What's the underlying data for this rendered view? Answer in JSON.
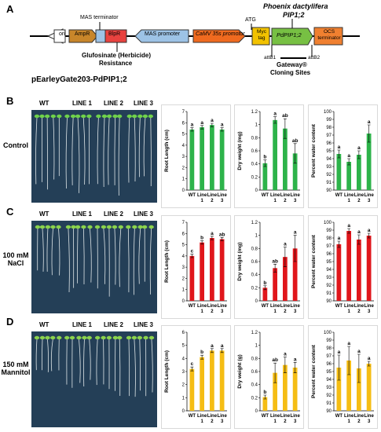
{
  "panels": {
    "A": "A",
    "B": "B",
    "C": "C",
    "D": "D"
  },
  "construct": {
    "title": "Phoenix dactylifera",
    "title2": "PIP1;2",
    "plasmid_name": "pEarleyGate203-PdPIP1;2",
    "ori": "ori",
    "ampr": "AmpR",
    "blpr": "BlpR",
    "mas_promoter": "MAS promoter",
    "camv": "CaMV 35s promotor",
    "myc": "Myc tag",
    "gene": "PdPIP1;2",
    "ocs": "OCS terminator",
    "mas_terminator": "MAS terminator",
    "atg": "ATG",
    "glufo1": "Glufosinate (Herbicide)",
    "glufo2": "Resistance",
    "attb1": "attB1",
    "attb2": "attB2",
    "gateway1": "Gateway®",
    "gateway2": "Cloning Sites"
  },
  "plate_headers": [
    "WT",
    "LINE 1",
    "LINE 2",
    "LINE 3"
  ],
  "conditions": [
    {
      "line1": "Control",
      "line2": ""
    },
    {
      "line1": "100 mM",
      "line2": "NaCl"
    },
    {
      "line1": "150 mM",
      "line2": "Mannitol"
    }
  ],
  "colors": {
    "control": "#2db34a",
    "nacl": "#e0161b",
    "mannitol": "#f5bd14",
    "plate": "#243f57",
    "ori": "#ffffff",
    "ampr": "#c8862a",
    "blpr": "#e8423f",
    "mas": "#9dc3e6",
    "camv": "#ef6a1f",
    "myc": "#f2c200",
    "gene": "#77c043",
    "ocs": "#f08030"
  },
  "chart_data": [
    {
      "type": "bar",
      "row": "Control",
      "ylabel": "Root Length (cm)",
      "ylim": [
        0,
        7
      ],
      "yticks": [
        "0",
        "1",
        "2",
        "3",
        "4",
        "5",
        "6",
        "7"
      ],
      "categories": [
        "WT",
        "Line 1",
        "Line 2",
        "Line 3"
      ],
      "cat_line1": [
        "WT",
        "Line",
        "Line",
        "Line"
      ],
      "cat_line2": [
        "",
        "1",
        "2",
        "3"
      ],
      "values": [
        5.4,
        5.6,
        5.8,
        5.4
      ],
      "errors": [
        0.15,
        0.15,
        0.15,
        0.15
      ],
      "letters": [
        "a",
        "a",
        "a",
        "a"
      ],
      "color": "#2db34a"
    },
    {
      "type": "bar",
      "row": "Control",
      "ylabel": "Dry weight (mg)",
      "ylim": [
        0,
        1.2
      ],
      "yticks": [
        "0",
        "0.2",
        "0.4",
        "0.6",
        "0.8",
        "1",
        "1.2"
      ],
      "categories": [
        "WT",
        "Line 1",
        "Line 2",
        "Line 3"
      ],
      "cat_line1": [
        "WT",
        "Line",
        "Line",
        "Line"
      ],
      "cat_line2": [
        "",
        "1",
        "2",
        "3"
      ],
      "values": [
        0.41,
        1.07,
        0.94,
        0.56
      ],
      "errors": [
        0.05,
        0.05,
        0.15,
        0.15
      ],
      "letters": [
        "b",
        "a",
        "ab",
        "ab"
      ],
      "color": "#2db34a"
    },
    {
      "type": "bar",
      "row": "Control",
      "ylabel": "Percent water content",
      "ylim": [
        90,
        100
      ],
      "yticks": [
        "90",
        "91",
        "92",
        "93",
        "94",
        "95",
        "96",
        "97",
        "98",
        "99",
        "100"
      ],
      "categories": [
        "WT",
        "Line 1",
        "Line 2",
        "Line 3"
      ],
      "cat_line1": [
        "WT",
        "Line",
        "Line",
        "Line"
      ],
      "cat_line2": [
        "",
        "1",
        "2",
        "3"
      ],
      "values": [
        94.6,
        93.6,
        94.5,
        97.2
      ],
      "errors": [
        0.5,
        0.4,
        0.5,
        1.1
      ],
      "letters": [
        "a",
        "a",
        "a",
        "a"
      ],
      "color": "#2db34a"
    },
    {
      "type": "bar",
      "row": "NaCl",
      "ylabel": "Root Length (cm)",
      "ylim": [
        0,
        7
      ],
      "yticks": [
        "0",
        "1",
        "2",
        "3",
        "4",
        "5",
        "6",
        "7"
      ],
      "categories": [
        "WT",
        "Line 1",
        "Line 2",
        "Line 3"
      ],
      "cat_line1": [
        "WT",
        "Line",
        "Line",
        "Line"
      ],
      "cat_line2": [
        "",
        "1",
        "2",
        "3"
      ],
      "values": [
        4.0,
        5.2,
        5.6,
        5.5
      ],
      "errors": [
        0.15,
        0.15,
        0.15,
        0.15
      ],
      "letters": [
        "c",
        "b",
        "a",
        "ab"
      ],
      "color": "#e0161b"
    },
    {
      "type": "bar",
      "row": "NaCl",
      "ylabel": "Dry weight (mg)",
      "ylim": [
        0,
        1.2
      ],
      "yticks": [
        "0",
        "0.2",
        "0.4",
        "0.6",
        "0.8",
        "1",
        "1.2"
      ],
      "categories": [
        "WT",
        "Line 1",
        "Line 2",
        "Line 3"
      ],
      "cat_line1": [
        "WT",
        "Line",
        "Line",
        "Line"
      ],
      "cat_line2": [
        "",
        "1",
        "2",
        "3"
      ],
      "values": [
        0.2,
        0.5,
        0.67,
        0.8
      ],
      "errors": [
        0.03,
        0.06,
        0.15,
        0.2
      ],
      "letters": [
        "b",
        "ab",
        "a",
        "a"
      ],
      "color": "#e0161b"
    },
    {
      "type": "bar",
      "row": "NaCl",
      "ylabel": "Percent water content",
      "ylim": [
        90,
        100
      ],
      "yticks": [
        "90",
        "91",
        "92",
        "93",
        "94",
        "95",
        "96",
        "97",
        "98",
        "99",
        "100"
      ],
      "categories": [
        "WT",
        "Line 1",
        "Line 2",
        "Line 3"
      ],
      "cat_line1": [
        "WT",
        "Line",
        "Line",
        "Line"
      ],
      "cat_line2": [
        "",
        "1",
        "2",
        "3"
      ],
      "values": [
        97.2,
        98.9,
        97.8,
        98.3
      ],
      "errors": [
        0.4,
        0.3,
        0.6,
        0.3
      ],
      "letters": [
        "a",
        "a",
        "a",
        "a"
      ],
      "color": "#e0161b"
    },
    {
      "type": "bar",
      "row": "Mannitol",
      "ylabel": "Root Length (cm)",
      "ylim": [
        0,
        6
      ],
      "yticks": [
        "0",
        "1",
        "2",
        "3",
        "4",
        "5",
        "6"
      ],
      "categories": [
        "WT",
        "Line 1",
        "Line 2",
        "Line 3"
      ],
      "cat_line1": [
        "WT",
        "Line",
        "Line",
        "Line"
      ],
      "cat_line2": [
        "",
        "1",
        "2",
        "3"
      ],
      "values": [
        3.2,
        4.1,
        4.6,
        4.6
      ],
      "errors": [
        0.15,
        0.15,
        0.15,
        0.15
      ],
      "letters": [
        "c",
        "b",
        "a",
        "a"
      ],
      "color": "#f5bd14"
    },
    {
      "type": "bar",
      "row": "Mannitol",
      "ylabel": "Dry weight (g)",
      "ylim": [
        0,
        1.2
      ],
      "yticks": [
        "0",
        "0.2",
        "0.4",
        "0.6",
        "0.8",
        "1",
        "1.2"
      ],
      "categories": [
        "WT",
        "Line 1",
        "Line 2",
        "Line 3"
      ],
      "cat_line1": [
        "WT",
        "Line",
        "Line",
        "Line"
      ],
      "cat_line2": [
        "",
        "1",
        "2",
        "3"
      ],
      "values": [
        0.21,
        0.58,
        0.7,
        0.66
      ],
      "errors": [
        0.03,
        0.15,
        0.12,
        0.08
      ],
      "letters": [
        "b",
        "ab",
        "a",
        "a"
      ],
      "color": "#f5bd14"
    },
    {
      "type": "bar",
      "row": "Mannitol",
      "ylabel": "Percent water content",
      "ylim": [
        90,
        100
      ],
      "yticks": [
        "90",
        "91",
        "92",
        "93",
        "94",
        "95",
        "96",
        "97",
        "98",
        "99",
        "100"
      ],
      "categories": [
        "WT",
        "Line 1",
        "Line 2",
        "Line 3"
      ],
      "cat_line1": [
        "WT",
        "Line",
        "Line",
        "Line"
      ],
      "cat_line2": [
        "",
        "1",
        "2",
        "3"
      ],
      "values": [
        95.5,
        96.4,
        95.4,
        96.0
      ],
      "errors": [
        1.6,
        1.8,
        1.8,
        0.3
      ],
      "letters": [
        "a",
        "a",
        "a",
        "a"
      ],
      "color": "#f5bd14"
    }
  ]
}
